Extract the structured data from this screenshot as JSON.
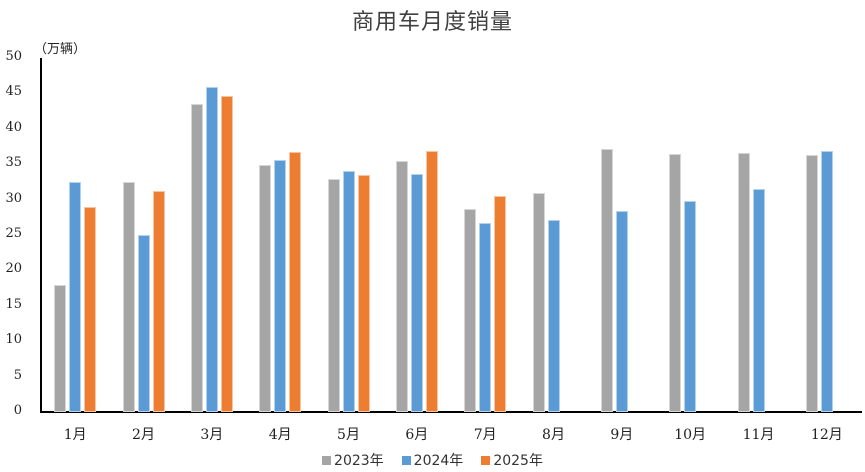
{
  "chart_data": {
    "type": "bar",
    "title": "商用车月度销量",
    "ylabel": "（万辆）",
    "xlabel": "",
    "ylim": [
      0,
      50
    ],
    "yticks": [
      0,
      5,
      10,
      15,
      20,
      25,
      30,
      35,
      40,
      45,
      50
    ],
    "grid": false,
    "legend_position": "bottom",
    "categories": [
      "1月",
      "2月",
      "3月",
      "4月",
      "5月",
      "6月",
      "7月",
      "8月",
      "9月",
      "10月",
      "11月",
      "12月"
    ],
    "series": [
      {
        "name": "2023年",
        "color": "#A5A5A5",
        "values": [
          17.9,
          32.5,
          43.5,
          34.9,
          32.9,
          35.5,
          28.7,
          30.9,
          37.1,
          36.4,
          36.6,
          36.3
        ]
      },
      {
        "name": "2024年",
        "color": "#5B9BD5",
        "values": [
          32.5,
          25.0,
          45.9,
          35.6,
          34.0,
          33.6,
          26.7,
          27.1,
          28.4,
          29.8,
          31.5,
          36.9
        ]
      },
      {
        "name": "2025年",
        "color": "#ED7D31",
        "values": [
          29.0,
          31.2,
          44.6,
          36.7,
          33.5,
          36.9,
          30.5,
          null,
          null,
          null,
          null,
          null
        ]
      }
    ]
  }
}
